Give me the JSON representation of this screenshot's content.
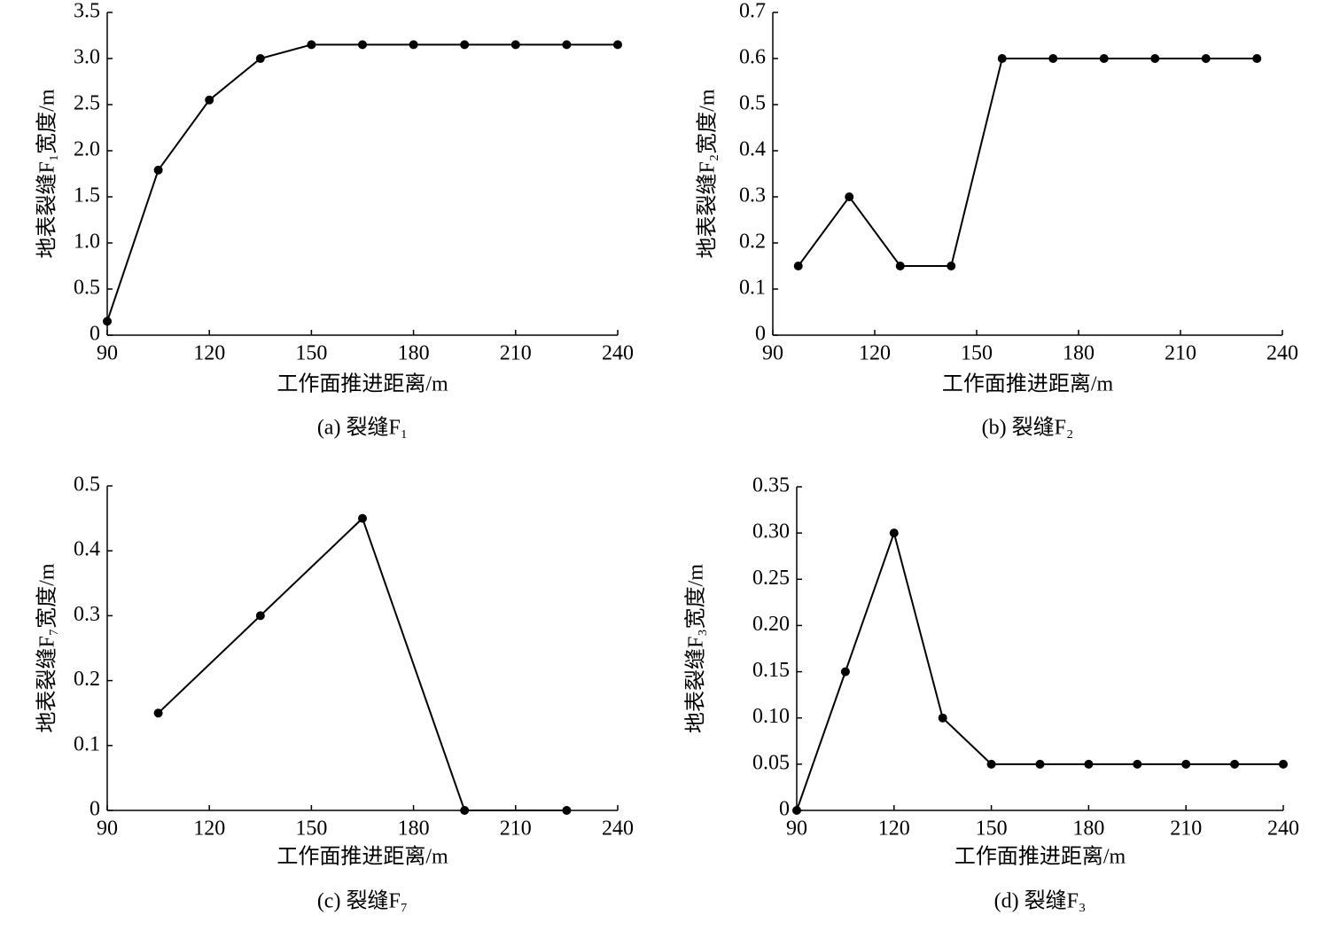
{
  "chart_data": [
    {
      "type": "line",
      "y_label": "地表裂缝F₁宽度/m",
      "x_label": "工作面推进距离/m",
      "caption": "(a)  裂缝F₁",
      "x": [
        90,
        105,
        120,
        135,
        150,
        165,
        180,
        195,
        210,
        225,
        240
      ],
      "values": [
        0.15,
        1.79,
        2.55,
        3.0,
        3.15,
        3.15,
        3.15,
        3.15,
        3.15,
        3.15,
        3.15
      ],
      "color": "#000000",
      "xlim": [
        90,
        240
      ],
      "ylim": [
        0,
        3.5
      ],
      "xticks": [
        90,
        120,
        150,
        180,
        210,
        240
      ],
      "yticks": [
        0,
        0.5,
        {
          "value": 1,
          "label": "1.0"
        },
        1.5,
        {
          "value": 2,
          "label": "2.0"
        },
        2.5,
        {
          "value": 3,
          "label": "3.0"
        },
        3.5
      ]
    },
    {
      "type": "line",
      "y_label": "地表裂缝F₂宽度/m",
      "x_label": "工作面推进距离/m",
      "caption": "(b)  裂缝F₂",
      "x": [
        97.5,
        112.5,
        127.5,
        142.5,
        157.5,
        172.5,
        187.5,
        202.5,
        217.5,
        232.5
      ],
      "values": [
        0.15,
        0.3,
        0.15,
        0.15,
        0.6,
        0.6,
        0.6,
        0.6,
        0.6,
        0.6
      ],
      "color": "#000000",
      "xlim": [
        90,
        240
      ],
      "ylim": [
        0,
        0.7
      ],
      "xticks": [
        90,
        120,
        150,
        180,
        210,
        240
      ],
      "yticks": [
        0,
        0.1,
        0.2,
        0.3,
        0.4,
        0.5,
        0.6,
        0.7
      ]
    },
    {
      "type": "line",
      "y_label": "地表裂缝F₇宽度/m",
      "x_label": "工作面推进距离/m",
      "caption": "(c)  裂缝F₇",
      "x": [
        105,
        135,
        165,
        195,
        225
      ],
      "values": [
        0.15,
        0.3,
        0.45,
        0,
        0
      ],
      "color": "#000000",
      "xlim": [
        90,
        240
      ],
      "ylim": [
        0,
        0.5
      ],
      "xticks": [
        90,
        120,
        150,
        180,
        210,
        240
      ],
      "yticks": [
        0,
        0.1,
        0.2,
        0.3,
        0.4,
        0.5
      ]
    },
    {
      "type": "line",
      "y_label": "地表裂缝F₃宽度/m",
      "x_label": "工作面推进距离/m",
      "caption": "(d)  裂缝F₃",
      "x": [
        90,
        105,
        120,
        135,
        150,
        165,
        180,
        195,
        210,
        225,
        240
      ],
      "values": [
        0,
        0.15,
        0.3,
        0.1,
        0.05,
        0.05,
        0.05,
        0.05,
        0.05,
        0.05,
        0.05
      ],
      "color": "#000000",
      "xlim": [
        90,
        240
      ],
      "ylim": [
        0,
        0.35
      ],
      "xticks": [
        90,
        120,
        150,
        180,
        210,
        240
      ],
      "yticks": [
        0,
        0.05,
        {
          "value": 0.1,
          "label": "0.10"
        },
        0.15,
        {
          "value": 0.2,
          "label": "0.20"
        },
        0.25,
        {
          "value": 0.3,
          "label": "0.30"
        },
        0.35
      ]
    }
  ]
}
